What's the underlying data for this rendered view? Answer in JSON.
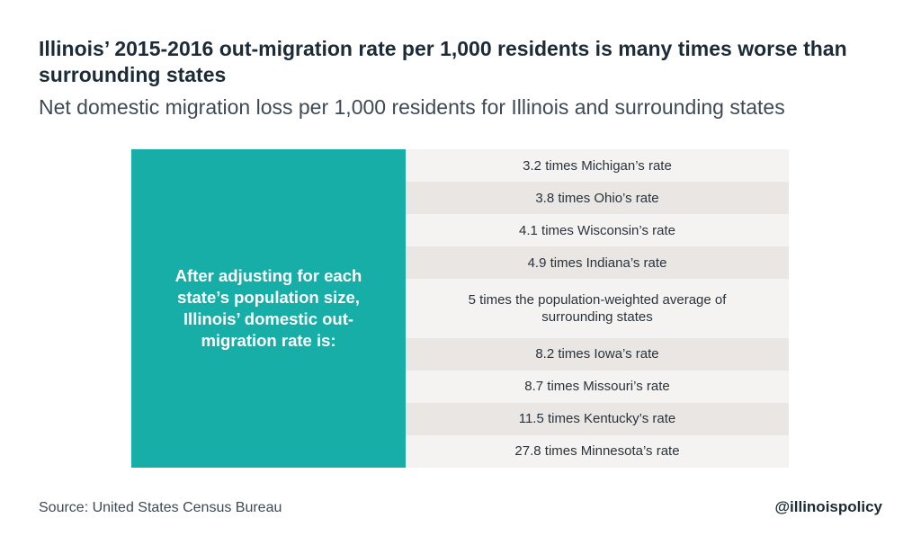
{
  "title": "Illinois’ 2015-2016 out-migration rate per 1,000 residents is many times worse than surrounding states",
  "subtitle": "Net domestic migration loss per 1,000 residents for Illinois and surrounding states",
  "panel_text": "After adjusting for each state’s population size, Illinois’ domestic out-migration rate is:",
  "chart_data": {
    "type": "table",
    "title": "Illinois’ 2015-2016 out-migration rate per 1,000 residents is many times worse than surrounding states",
    "subtitle": "Net domestic migration loss per 1,000 residents for Illinois and surrounding states",
    "rows": [
      {
        "label": "3.2 times Michigan’s rate",
        "value": 3.2
      },
      {
        "label": "3.8 times Ohio’s rate",
        "value": 3.8
      },
      {
        "label": "4.1 times Wisconsin’s rate",
        "value": 4.1
      },
      {
        "label": "4.9 times Indiana’s rate",
        "value": 4.9
      },
      {
        "label": "5 times the population-weighted average of surrounding states",
        "value": 5
      },
      {
        "label": "8.2 times Iowa’s rate",
        "value": 8.2
      },
      {
        "label": "8.7 times Missouri’s rate",
        "value": 8.7
      },
      {
        "label": "11.5 times Kentucky’s rate",
        "value": 11.5
      },
      {
        "label": "27.8 times Minnesota’s rate",
        "value": 27.8
      }
    ]
  },
  "footer": {
    "source": "Source: United States Census Bureau",
    "handle": "@illinoispolicy"
  },
  "colors": {
    "panel": "#16aea6",
    "row_light": "#f5f3f1",
    "row_dark": "#e9e6e4"
  }
}
